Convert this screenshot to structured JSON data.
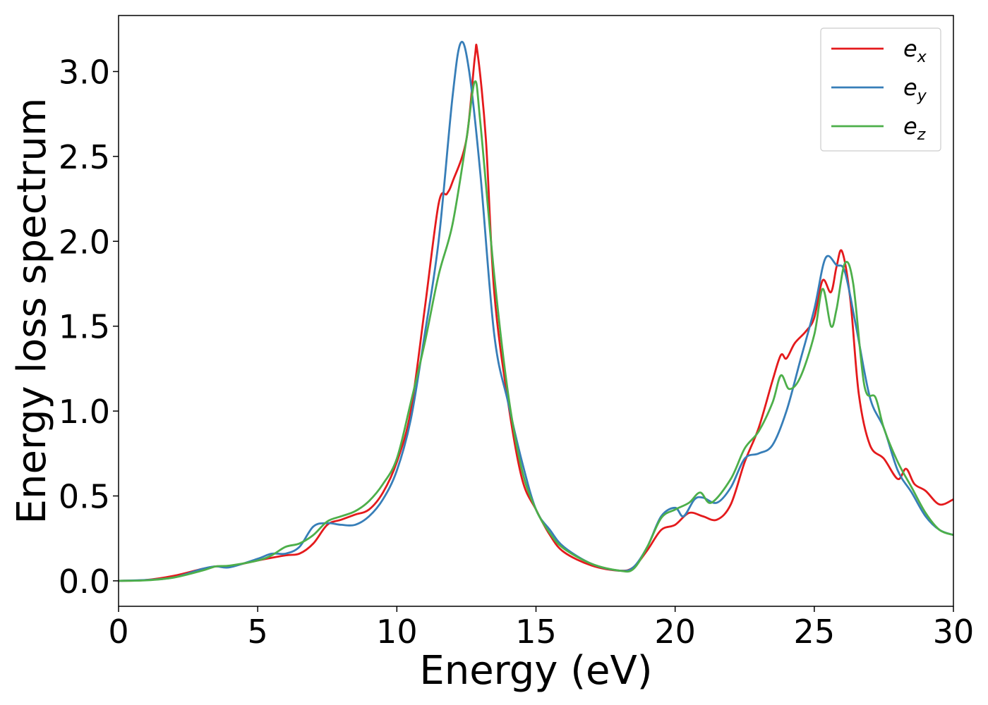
{
  "chart_data": {
    "type": "line",
    "title": "",
    "xlabel": "Energy (eV)",
    "ylabel": "Energy loss spectrum",
    "xlim": [
      0,
      30
    ],
    "ylim": [
      -0.15,
      3.33
    ],
    "xticks": [
      0,
      5,
      10,
      15,
      20,
      25,
      30
    ],
    "xtick_labels": [
      "0",
      "5",
      "10",
      "15",
      "20",
      "25",
      "30"
    ],
    "yticks": [
      0.0,
      0.5,
      1.0,
      1.5,
      2.0,
      2.5,
      3.0
    ],
    "ytick_labels": [
      "0.0",
      "0.5",
      "1.0",
      "1.5",
      "2.0",
      "2.5",
      "3.0"
    ],
    "grid": false,
    "legend_position": "top-right",
    "series": [
      {
        "name": "e_x",
        "label_base": "e",
        "label_sub": "x",
        "color": "#e41a1c",
        "points": [
          [
            0,
            0.0
          ],
          [
            1,
            0.005
          ],
          [
            2,
            0.03
          ],
          [
            3,
            0.07
          ],
          [
            3.5,
            0.085
          ],
          [
            4,
            0.085
          ],
          [
            5,
            0.12
          ],
          [
            6,
            0.15
          ],
          [
            6.5,
            0.16
          ],
          [
            7,
            0.22
          ],
          [
            7.5,
            0.33
          ],
          [
            8,
            0.36
          ],
          [
            8.5,
            0.39
          ],
          [
            9,
            0.42
          ],
          [
            9.5,
            0.52
          ],
          [
            10,
            0.7
          ],
          [
            10.5,
            1.0
          ],
          [
            11,
            1.6
          ],
          [
            11.5,
            2.22
          ],
          [
            11.8,
            2.28
          ],
          [
            12,
            2.35
          ],
          [
            12.5,
            2.6
          ],
          [
            12.8,
            3.08
          ],
          [
            12.9,
            3.11
          ],
          [
            13.2,
            2.6
          ],
          [
            13.5,
            1.7
          ],
          [
            14,
            1.05
          ],
          [
            14.5,
            0.6
          ],
          [
            15,
            0.42
          ],
          [
            15.5,
            0.27
          ],
          [
            16,
            0.17
          ],
          [
            17,
            0.09
          ],
          [
            18,
            0.06
          ],
          [
            18.5,
            0.08
          ],
          [
            19,
            0.18
          ],
          [
            19.5,
            0.3
          ],
          [
            20,
            0.33
          ],
          [
            20.5,
            0.4
          ],
          [
            21,
            0.38
          ],
          [
            21.5,
            0.36
          ],
          [
            22,
            0.45
          ],
          [
            22.5,
            0.7
          ],
          [
            23,
            0.9
          ],
          [
            23.5,
            1.18
          ],
          [
            23.8,
            1.33
          ],
          [
            24,
            1.31
          ],
          [
            24.3,
            1.4
          ],
          [
            24.7,
            1.47
          ],
          [
            25,
            1.55
          ],
          [
            25.3,
            1.77
          ],
          [
            25.6,
            1.7
          ],
          [
            25.8,
            1.85
          ],
          [
            26,
            1.94
          ],
          [
            26.3,
            1.65
          ],
          [
            26.6,
            1.1
          ],
          [
            27,
            0.8
          ],
          [
            27.5,
            0.72
          ],
          [
            28,
            0.6
          ],
          [
            28.3,
            0.66
          ],
          [
            28.6,
            0.57
          ],
          [
            29,
            0.53
          ],
          [
            29.5,
            0.45
          ],
          [
            30,
            0.48
          ]
        ]
      },
      {
        "name": "e_y",
        "label_base": "e",
        "label_sub": "y",
        "color": "#377eb8",
        "points": [
          [
            0,
            0.0
          ],
          [
            1,
            0.005
          ],
          [
            2,
            0.02
          ],
          [
            3,
            0.07
          ],
          [
            3.5,
            0.085
          ],
          [
            4,
            0.08
          ],
          [
            5,
            0.13
          ],
          [
            5.5,
            0.16
          ],
          [
            6,
            0.16
          ],
          [
            6.5,
            0.2
          ],
          [
            7,
            0.32
          ],
          [
            7.5,
            0.34
          ],
          [
            8,
            0.33
          ],
          [
            8.5,
            0.33
          ],
          [
            9,
            0.38
          ],
          [
            9.5,
            0.48
          ],
          [
            10,
            0.65
          ],
          [
            10.5,
            0.95
          ],
          [
            11,
            1.45
          ],
          [
            11.5,
            2.0
          ],
          [
            12,
            2.85
          ],
          [
            12.3,
            3.17
          ],
          [
            12.6,
            3.0
          ],
          [
            13,
            2.4
          ],
          [
            13.5,
            1.45
          ],
          [
            14,
            1.05
          ],
          [
            14.5,
            0.7
          ],
          [
            15,
            0.42
          ],
          [
            15.5,
            0.3
          ],
          [
            16,
            0.2
          ],
          [
            17,
            0.1
          ],
          [
            18,
            0.06
          ],
          [
            18.5,
            0.08
          ],
          [
            19,
            0.2
          ],
          [
            19.5,
            0.38
          ],
          [
            20,
            0.43
          ],
          [
            20.3,
            0.38
          ],
          [
            20.7,
            0.48
          ],
          [
            21,
            0.49
          ],
          [
            21.5,
            0.46
          ],
          [
            22,
            0.55
          ],
          [
            22.5,
            0.72
          ],
          [
            23,
            0.75
          ],
          [
            23.5,
            0.8
          ],
          [
            24,
            1.0
          ],
          [
            24.5,
            1.3
          ],
          [
            25,
            1.6
          ],
          [
            25.4,
            1.9
          ],
          [
            25.8,
            1.86
          ],
          [
            26.1,
            1.82
          ],
          [
            26.5,
            1.5
          ],
          [
            27,
            1.08
          ],
          [
            27.5,
            0.9
          ],
          [
            28,
            0.65
          ],
          [
            28.5,
            0.52
          ],
          [
            29,
            0.38
          ],
          [
            29.5,
            0.3
          ],
          [
            30,
            0.27
          ]
        ]
      },
      {
        "name": "e_z",
        "label_base": "e",
        "label_sub": "z",
        "color": "#4daf4a",
        "points": [
          [
            0,
            0.0
          ],
          [
            1,
            0.003
          ],
          [
            2,
            0.02
          ],
          [
            3,
            0.06
          ],
          [
            3.5,
            0.085
          ],
          [
            4,
            0.09
          ],
          [
            5,
            0.12
          ],
          [
            5.5,
            0.15
          ],
          [
            6,
            0.2
          ],
          [
            6.5,
            0.22
          ],
          [
            7,
            0.27
          ],
          [
            7.5,
            0.35
          ],
          [
            8,
            0.38
          ],
          [
            8.5,
            0.41
          ],
          [
            9,
            0.47
          ],
          [
            9.5,
            0.57
          ],
          [
            10,
            0.72
          ],
          [
            10.5,
            1.05
          ],
          [
            11,
            1.4
          ],
          [
            11.5,
            1.8
          ],
          [
            12,
            2.1
          ],
          [
            12.5,
            2.6
          ],
          [
            12.8,
            2.94
          ],
          [
            13,
            2.7
          ],
          [
            13.5,
            1.8
          ],
          [
            14,
            1.1
          ],
          [
            14.5,
            0.65
          ],
          [
            15,
            0.42
          ],
          [
            15.5,
            0.28
          ],
          [
            16,
            0.19
          ],
          [
            17,
            0.1
          ],
          [
            18,
            0.06
          ],
          [
            18.5,
            0.07
          ],
          [
            19,
            0.2
          ],
          [
            19.5,
            0.37
          ],
          [
            20,
            0.42
          ],
          [
            20.5,
            0.46
          ],
          [
            20.9,
            0.52
          ],
          [
            21.3,
            0.46
          ],
          [
            22,
            0.6
          ],
          [
            22.5,
            0.78
          ],
          [
            23,
            0.88
          ],
          [
            23.5,
            1.05
          ],
          [
            23.8,
            1.21
          ],
          [
            24.1,
            1.13
          ],
          [
            24.5,
            1.2
          ],
          [
            25,
            1.45
          ],
          [
            25.3,
            1.72
          ],
          [
            25.6,
            1.5
          ],
          [
            25.8,
            1.6
          ],
          [
            26.1,
            1.87
          ],
          [
            26.4,
            1.75
          ],
          [
            26.8,
            1.15
          ],
          [
            27.2,
            1.08
          ],
          [
            27.5,
            0.9
          ],
          [
            28,
            0.7
          ],
          [
            28.5,
            0.55
          ],
          [
            29,
            0.4
          ],
          [
            29.5,
            0.3
          ],
          [
            30,
            0.27
          ]
        ]
      }
    ]
  }
}
